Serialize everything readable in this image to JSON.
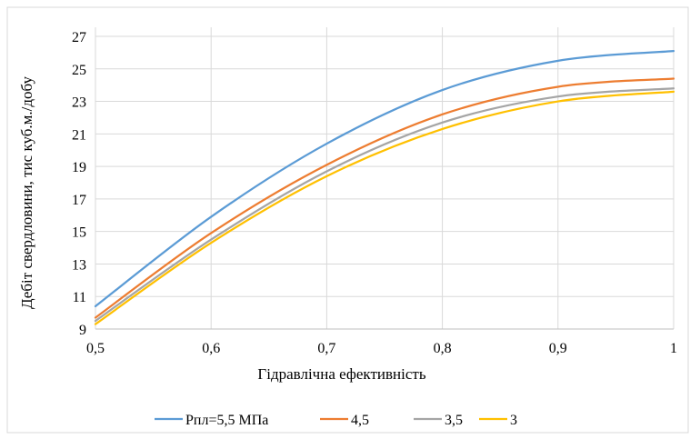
{
  "chart_data": {
    "type": "line",
    "xlabel": "Гідравлічна ефективність",
    "ylabel": "Дебіт свердловини, тис куб.м./добу",
    "xlim": [
      0.5,
      1
    ],
    "ylim": [
      9,
      28
    ],
    "x_ticks": [
      "0,5",
      "0,6",
      "0,7",
      "0,8",
      "0,9",
      "1"
    ],
    "y_ticks": [
      "9",
      "11",
      "13",
      "15",
      "17",
      "19",
      "21",
      "23",
      "25",
      "27"
    ],
    "grid": true,
    "legend_position": "bottom",
    "x": [
      0.5,
      0.6,
      0.7,
      0.8,
      0.9,
      1.0
    ],
    "series": [
      {
        "name": "Рпл=5,5 МПа",
        "color": "#5B9BD5",
        "values": [
          10.4,
          15.9,
          20.4,
          23.7,
          25.5,
          26.1
        ]
      },
      {
        "name": "4,5",
        "color": "#ED7D31",
        "values": [
          9.7,
          14.9,
          19.1,
          22.2,
          23.9,
          24.4
        ]
      },
      {
        "name": "3,5",
        "color": "#A5A5A5",
        "values": [
          9.5,
          14.5,
          18.7,
          21.7,
          23.3,
          23.8
        ]
      },
      {
        "name": "3",
        "color": "#FFC000",
        "values": [
          9.3,
          14.3,
          18.4,
          21.3,
          23.0,
          23.6
        ]
      }
    ]
  }
}
